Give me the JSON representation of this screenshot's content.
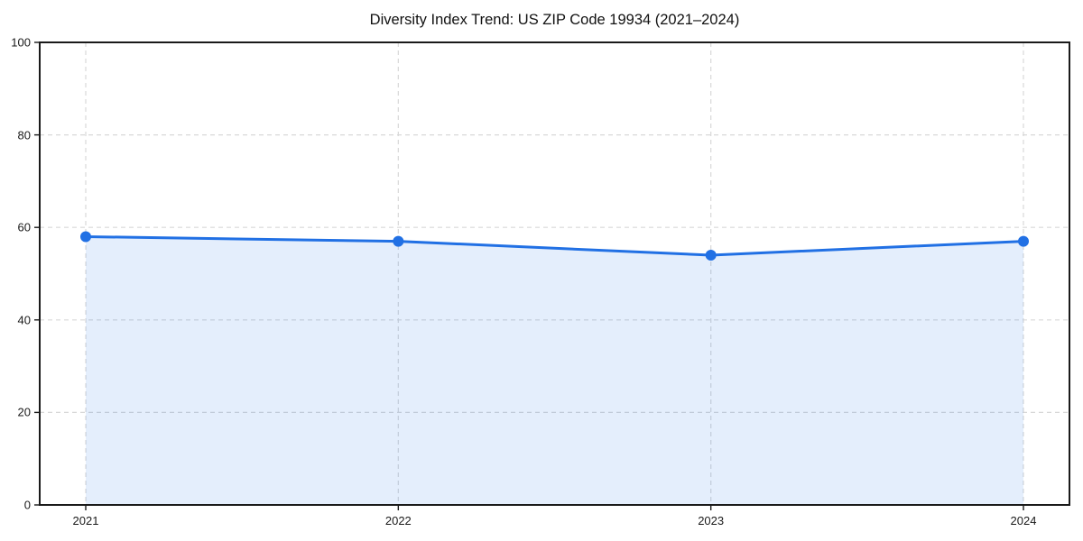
{
  "chart_data": {
    "type": "area",
    "title": "Diversity Index Trend: US ZIP Code 19934 (2021–2024)",
    "categories": [
      "2021",
      "2022",
      "2023",
      "2024"
    ],
    "series": [
      {
        "name": "Diversity Index",
        "values": [
          58,
          57,
          54,
          57
        ]
      }
    ],
    "xlabel": "",
    "ylabel": "",
    "ylim": [
      0,
      100
    ],
    "yticks": [
      0,
      20,
      40,
      60,
      80,
      100
    ],
    "grid": true,
    "grid_style": "dashed",
    "legend": false,
    "colors": {
      "line": "#2170e4",
      "marker": "#2170e4",
      "fill": "rgba(33, 112, 228, 0.12)",
      "grid": "#d8d8d8",
      "spine": "#1a1a1a",
      "tick_text": "#1a1a1a",
      "title_text": "#111111",
      "background": "#ffffff"
    }
  }
}
